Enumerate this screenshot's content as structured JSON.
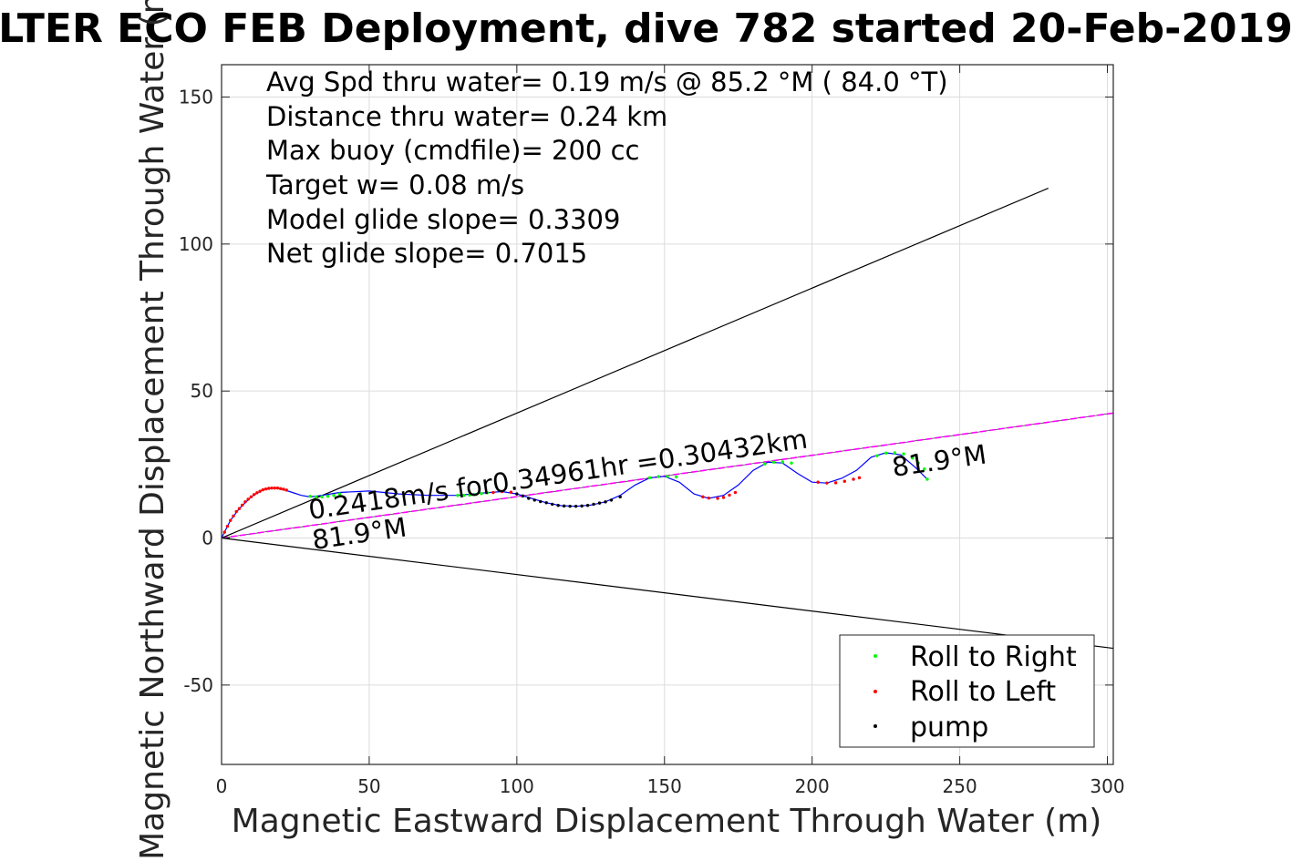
{
  "chart_data": {
    "type": "scatter",
    "title": "LTER ECO FEB Deployment, dive 782 started 20-Feb-2019",
    "xlabel": "Magnetic Eastward Displacement Through Water (m)",
    "ylabel": "Magnetic Northward Displacement Through Water (m)",
    "xlim": [
      0,
      302
    ],
    "ylim": [
      -77,
      161
    ],
    "x_ticks": [
      0,
      50,
      100,
      150,
      200,
      250,
      300
    ],
    "y_ticks": [
      -50,
      0,
      50,
      100,
      150
    ],
    "x_tick_labels": [
      "0",
      "50",
      "100",
      "150",
      "200",
      "250",
      "300"
    ],
    "y_tick_labels": [
      "-50",
      "0",
      "50",
      "100",
      "150"
    ],
    "grid": true,
    "legend_position": "bottom-right",
    "annotations": [
      "Avg Spd thru water=  0.19 m/s @  85.2 °M ( 84.0 °T)",
      "Distance thru water=  0.24 km",
      "Max buoy (cmdfile)= 200 cc",
      "Target w= 0.08 m/s",
      "Model glide slope= 0.3309",
      "Net glide slope= 0.7015"
    ],
    "plot_labels": {
      "speed_label": "0.2418m/s for0.34961hr =0.30432km",
      "heading_label_start": "81.9°M",
      "heading_label_end": "81.9°M"
    },
    "legend": [
      "Roll to Right",
      "Roll to Left",
      "pump"
    ],
    "colors": {
      "track": "#0000ff",
      "roll_right": "#00ff00",
      "roll_left": "#ff0000",
      "pump": "#000000",
      "heading_line": "#ff00ff",
      "cone_line": "#000000",
      "grid": "#dcdcdc",
      "axes": "#262626"
    },
    "lines": [
      {
        "name": "heading",
        "x": [
          0,
          302
        ],
        "y": [
          0,
          42.5
        ]
      },
      {
        "name": "cone-upper",
        "x": [
          0,
          280
        ],
        "y": [
          0,
          119
        ]
      },
      {
        "name": "cone-lower",
        "x": [
          0,
          302
        ],
        "y": [
          0,
          -37.5
        ]
      }
    ],
    "track": {
      "x": [
        0,
        3,
        6,
        10,
        14,
        18,
        21,
        24,
        27,
        30,
        34,
        40,
        50,
        60,
        70,
        80,
        88,
        95,
        100,
        105,
        110,
        115,
        120,
        125,
        130,
        135,
        140,
        145,
        150,
        155,
        160,
        165,
        170,
        175,
        180,
        185,
        190,
        195,
        200,
        205,
        210,
        215,
        220,
        225,
        230,
        235,
        239
      ],
      "y": [
        0,
        6,
        10,
        14,
        16.5,
        17,
        16.5,
        15.5,
        14.5,
        14,
        14.5,
        15.5,
        16,
        15,
        14.5,
        14.5,
        15.3,
        15.8,
        15,
        13.5,
        12,
        11,
        10.8,
        11.2,
        12.3,
        14.5,
        18,
        20.5,
        21,
        19,
        15,
        13.5,
        14.5,
        18,
        23,
        25.8,
        25.5,
        22,
        19,
        18.7,
        20.3,
        23,
        27.5,
        29,
        28.3,
        24,
        20
      ]
    },
    "series": [
      {
        "name": "Roll to Right",
        "x": [
          30,
          32,
          34,
          36,
          38,
          40,
          80,
          82,
          84,
          86,
          88,
          90,
          145,
          148,
          151,
          154,
          184,
          187,
          190,
          193,
          222,
          225,
          228,
          231,
          234,
          236,
          238,
          239
        ],
        "y": [
          14.2,
          14,
          14,
          14.2,
          14.5,
          15,
          14.5,
          14.5,
          14.6,
          14.8,
          15.1,
          15.4,
          20.5,
          20.9,
          21,
          20.8,
          25.2,
          25.8,
          25.9,
          25.5,
          28,
          28.9,
          29,
          28.6,
          27.2,
          25.5,
          23.5,
          20
        ]
      },
      {
        "name": "Roll to Left",
        "x": [
          1,
          2,
          3,
          4,
          5,
          6,
          7,
          8,
          9,
          10,
          11,
          12,
          13,
          14,
          15,
          16,
          17,
          18,
          19,
          20,
          21,
          22,
          92,
          95,
          98,
          163,
          165,
          168,
          170,
          172,
          174,
          202,
          205,
          208,
          211,
          214,
          216
        ],
        "y": [
          2,
          4,
          6,
          7.5,
          9,
          10,
          11.2,
          12.3,
          13.2,
          14,
          14.8,
          15.4,
          15.9,
          16.4,
          16.7,
          16.9,
          17,
          17,
          17,
          16.8,
          16.6,
          16.3,
          15.5,
          15.8,
          15.6,
          14,
          13.6,
          13.5,
          13.8,
          14.6,
          15.5,
          19,
          18.7,
          18.8,
          19.3,
          20,
          20.5
        ]
      },
      {
        "name": "pump",
        "x": [
          100,
          102,
          104,
          106,
          108,
          110,
          112,
          114,
          116,
          118,
          120,
          122,
          124,
          126,
          128,
          130,
          132,
          135
        ],
        "y": [
          15,
          14.3,
          13.5,
          12.9,
          12.4,
          12,
          11.5,
          11.1,
          10.9,
          10.8,
          10.8,
          10.9,
          11.1,
          11.5,
          11.9,
          12.3,
          12.9,
          14
        ]
      }
    ]
  }
}
